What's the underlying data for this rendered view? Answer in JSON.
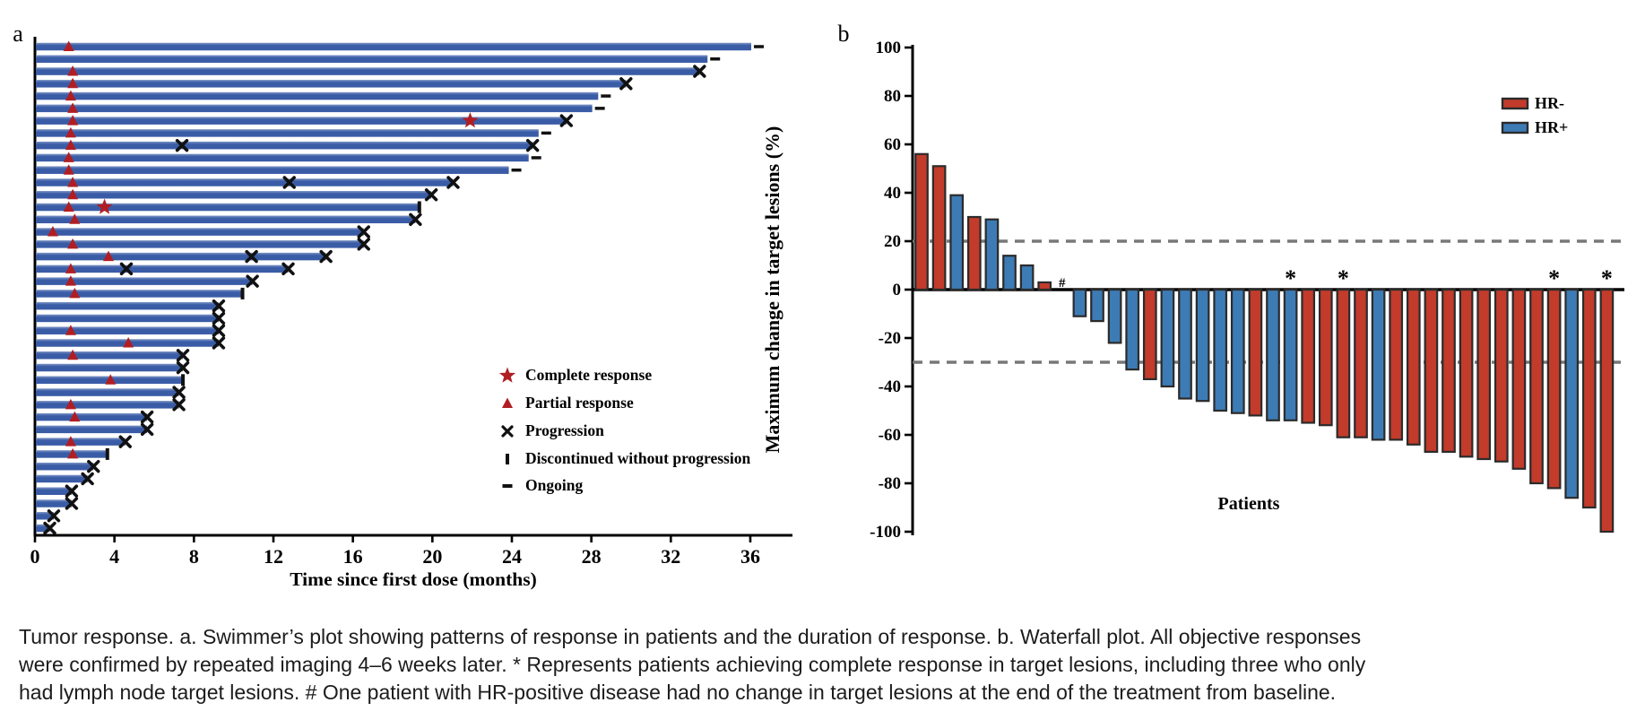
{
  "figure": {
    "panel_a_label": "a",
    "panel_b_label": "b",
    "caption": "Tumor response. a. Swimmer’s plot showing patterns of response in patients and the duration of response. b. Waterfall plot. All objective responses were confirmed by repeated imaging 4–6 weeks later. * Represents patients achieving complete response in target lesions, including three who only had lymph node target lesions. # One patient with HR-positive disease had no change in target lesions at the end of the treatment from baseline."
  },
  "chart_data": [
    {
      "type": "bar",
      "variant": "swimmer",
      "panel": "a",
      "xlabel": "Time since first dose (months)",
      "xlim": [
        0,
        38
      ],
      "xticks": [
        0,
        4,
        8,
        12,
        16,
        20,
        24,
        28,
        32,
        36
      ],
      "bar_color": "#3A5CA6",
      "bar_highlight": "#7E96C6",
      "marker_red": "#B01E23",
      "marker_black": "#111111",
      "legend": [
        {
          "marker": "star",
          "label": "Complete response"
        },
        {
          "marker": "triangle",
          "label": "Partial response"
        },
        {
          "marker": "x",
          "label": "Progression"
        },
        {
          "marker": "pipe",
          "label": "Discontinued without progression"
        },
        {
          "marker": "dash",
          "label": "Ongoing"
        }
      ],
      "rows": [
        {
          "len": 36.0,
          "end": "dash",
          "tri": 1.7
        },
        {
          "len": 33.8,
          "end": "dash"
        },
        {
          "len": 33.4,
          "end": "x",
          "tri": 1.9
        },
        {
          "len": 29.7,
          "end": "x",
          "tri": 1.9
        },
        {
          "len": 28.3,
          "end": "dash",
          "tri": 1.8
        },
        {
          "len": 28.0,
          "end": "dash",
          "tri": 1.9
        },
        {
          "len": 26.7,
          "end": "x",
          "tri": 1.9,
          "star": 21.9
        },
        {
          "len": 25.3,
          "end": "dash",
          "tri": 1.8
        },
        {
          "len": 25.0,
          "end": "x",
          "tri": 1.8,
          "midx": [
            7.4
          ]
        },
        {
          "len": 24.8,
          "end": "dash",
          "tri": 1.7
        },
        {
          "len": 23.8,
          "end": "dash",
          "tri": 1.7
        },
        {
          "len": 21.0,
          "end": "x",
          "tri": 1.9,
          "midx": [
            12.8
          ]
        },
        {
          "len": 19.9,
          "end": "x",
          "tri": 1.9
        },
        {
          "len": 19.3,
          "end": "pipe",
          "tri": 1.7,
          "star": 3.5
        },
        {
          "len": 19.1,
          "end": "x",
          "tri": 2.0
        },
        {
          "len": 16.5,
          "end": "x",
          "tri": 0.9
        },
        {
          "len": 16.5,
          "end": "x",
          "tri": 1.9
        },
        {
          "len": 14.6,
          "end": "x",
          "tri": 3.7,
          "midx": [
            10.9
          ]
        },
        {
          "len": 12.7,
          "end": "x",
          "tri": 1.8,
          "midx": [
            4.6
          ]
        },
        {
          "len": 10.9,
          "end": "x",
          "tri": 1.8
        },
        {
          "len": 10.4,
          "end": "pipe",
          "tri": 2.0
        },
        {
          "len": 9.2,
          "end": "x"
        },
        {
          "len": 9.2,
          "end": "x"
        },
        {
          "len": 9.2,
          "end": "x",
          "tri": 1.8
        },
        {
          "len": 9.2,
          "end": "x",
          "tri": 4.7
        },
        {
          "len": 7.4,
          "end": "x",
          "tri": 1.9
        },
        {
          "len": 7.4,
          "end": "x"
        },
        {
          "len": 7.4,
          "end": "pipe",
          "tri": 3.8
        },
        {
          "len": 7.2,
          "end": "x"
        },
        {
          "len": 7.2,
          "end": "x",
          "tri": 1.8
        },
        {
          "len": 5.6,
          "end": "x",
          "tri": 2.0
        },
        {
          "len": 5.6,
          "end": "x"
        },
        {
          "len": 4.5,
          "end": "x",
          "tri": 1.8
        },
        {
          "len": 3.6,
          "end": "pipe",
          "tri": 1.9
        },
        {
          "len": 2.9,
          "end": "x"
        },
        {
          "len": 2.6,
          "end": "x"
        },
        {
          "len": 1.8,
          "end": "x"
        },
        {
          "len": 1.8,
          "end": "x"
        },
        {
          "len": 0.9,
          "end": "x"
        },
        {
          "len": 0.7,
          "end": "x"
        }
      ]
    },
    {
      "type": "bar",
      "variant": "waterfall",
      "panel": "b",
      "ylabel": "Maximum change in target lesions (%)",
      "xlabel": "Patients",
      "ylim": [
        -100,
        100
      ],
      "yticks": [
        100,
        80,
        60,
        40,
        20,
        0,
        -20,
        -40,
        -60,
        -80,
        -100
      ],
      "ref_lines": [
        20,
        -30
      ],
      "ref_line_color": "#787878",
      "outline_color": "#2B2B2B",
      "legend": [
        {
          "label": "HR-",
          "color": "#C23B2B"
        },
        {
          "label": "HR+",
          "color": "#3D7BB5"
        }
      ],
      "bars": [
        {
          "v": 56,
          "g": "HR-"
        },
        {
          "v": 51,
          "g": "HR-"
        },
        {
          "v": 39,
          "g": "HR+"
        },
        {
          "v": 30,
          "g": "HR-"
        },
        {
          "v": 29,
          "g": "HR+"
        },
        {
          "v": 14,
          "g": "HR+"
        },
        {
          "v": 10,
          "g": "HR+"
        },
        {
          "v": 3,
          "g": "HR-"
        },
        {
          "v": 0,
          "g": "HR+",
          "flag": "#"
        },
        {
          "v": -11,
          "g": "HR+"
        },
        {
          "v": -13,
          "g": "HR+"
        },
        {
          "v": -22,
          "g": "HR+"
        },
        {
          "v": -33,
          "g": "HR+"
        },
        {
          "v": -37,
          "g": "HR-"
        },
        {
          "v": -40,
          "g": "HR+"
        },
        {
          "v": -45,
          "g": "HR+"
        },
        {
          "v": -46,
          "g": "HR+"
        },
        {
          "v": -50,
          "g": "HR+"
        },
        {
          "v": -51,
          "g": "HR+"
        },
        {
          "v": -52,
          "g": "HR-"
        },
        {
          "v": -54,
          "g": "HR+"
        },
        {
          "v": -54,
          "g": "HR+",
          "flag": "*"
        },
        {
          "v": -55,
          "g": "HR-"
        },
        {
          "v": -56,
          "g": "HR-"
        },
        {
          "v": -61,
          "g": "HR-",
          "flag": "*"
        },
        {
          "v": -61,
          "g": "HR-"
        },
        {
          "v": -62,
          "g": "HR+"
        },
        {
          "v": -62,
          "g": "HR-"
        },
        {
          "v": -64,
          "g": "HR-"
        },
        {
          "v": -67,
          "g": "HR-"
        },
        {
          "v": -67,
          "g": "HR-"
        },
        {
          "v": -69,
          "g": "HR-"
        },
        {
          "v": -70,
          "g": "HR-"
        },
        {
          "v": -71,
          "g": "HR-"
        },
        {
          "v": -74,
          "g": "HR-"
        },
        {
          "v": -80,
          "g": "HR-"
        },
        {
          "v": -82,
          "g": "HR-",
          "flag": "*"
        },
        {
          "v": -86,
          "g": "HR+"
        },
        {
          "v": -90,
          "g": "HR-"
        },
        {
          "v": -100,
          "g": "HR-",
          "flag": "*"
        }
      ]
    }
  ]
}
